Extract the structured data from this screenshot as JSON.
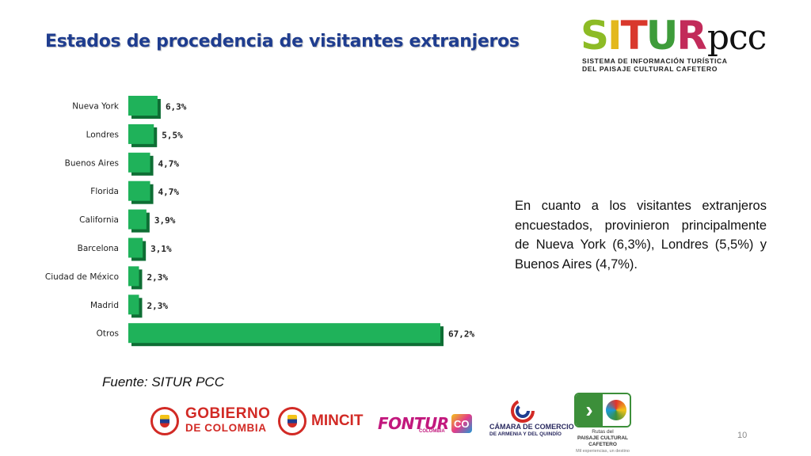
{
  "title": "Estados de procedencia de visitantes extranjeros",
  "logo": {
    "letters": [
      {
        "char": "S",
        "color": "#8dbb25"
      },
      {
        "char": "I",
        "color": "#e3b81d"
      },
      {
        "char": "T",
        "color": "#d9382c"
      },
      {
        "char": "U",
        "color": "#3e9c3a"
      },
      {
        "char": "R",
        "color": "#c22b5a"
      }
    ],
    "suffix": "pcc",
    "line1": "SISTEMA DE INFORMACIÓN TURÍSTICA",
    "line2": "DEL PAISAJE CULTURAL CAFETERO"
  },
  "chart_data": {
    "type": "bar",
    "orientation": "horizontal",
    "categories": [
      "Nueva York",
      "Londres",
      "Buenos Aires",
      "Florida",
      "California",
      "Barcelona",
      "Ciudad de México",
      "Madrid",
      "Otros"
    ],
    "values": [
      6.3,
      5.5,
      4.7,
      4.7,
      3.9,
      3.1,
      2.3,
      2.3,
      67.2
    ],
    "data_labels": [
      "6,3%",
      "5,5%",
      "4,7%",
      "4,7%",
      "3,9%",
      "3,1%",
      "2,3%",
      "2,3%",
      "67,2%"
    ],
    "xlim": [
      0,
      67.2
    ],
    "grid": false,
    "bar_color": "#1fb25a",
    "bar_shadow_color": "#0e6e34"
  },
  "description": "En cuanto a los visitantes extranjeros encuestados, provinieron principalmente de Nueva York (6,3%), Londres (5,5%) y Buenos Aires (4,7%).",
  "source": "Fuente: SITUR PCC",
  "page_number": "10",
  "footer": {
    "gobierno_line1": "GOBIERNO",
    "gobierno_line2": "DE COLOMBIA",
    "mincit": "MINCIT",
    "fontur": "FONTUR",
    "fontur_sub": "COLOMBIA",
    "co_badge": "CO",
    "camara_line1": "CÁMARA DE COMERCIO",
    "camara_line2": "DE ARMENIA Y DEL QUINDÍO",
    "rutas_line1": "Rutas del",
    "rutas_line2": "PAISAJE CULTURAL CAFETERO",
    "rutas_line3": "Mil experiencias, un destino"
  }
}
